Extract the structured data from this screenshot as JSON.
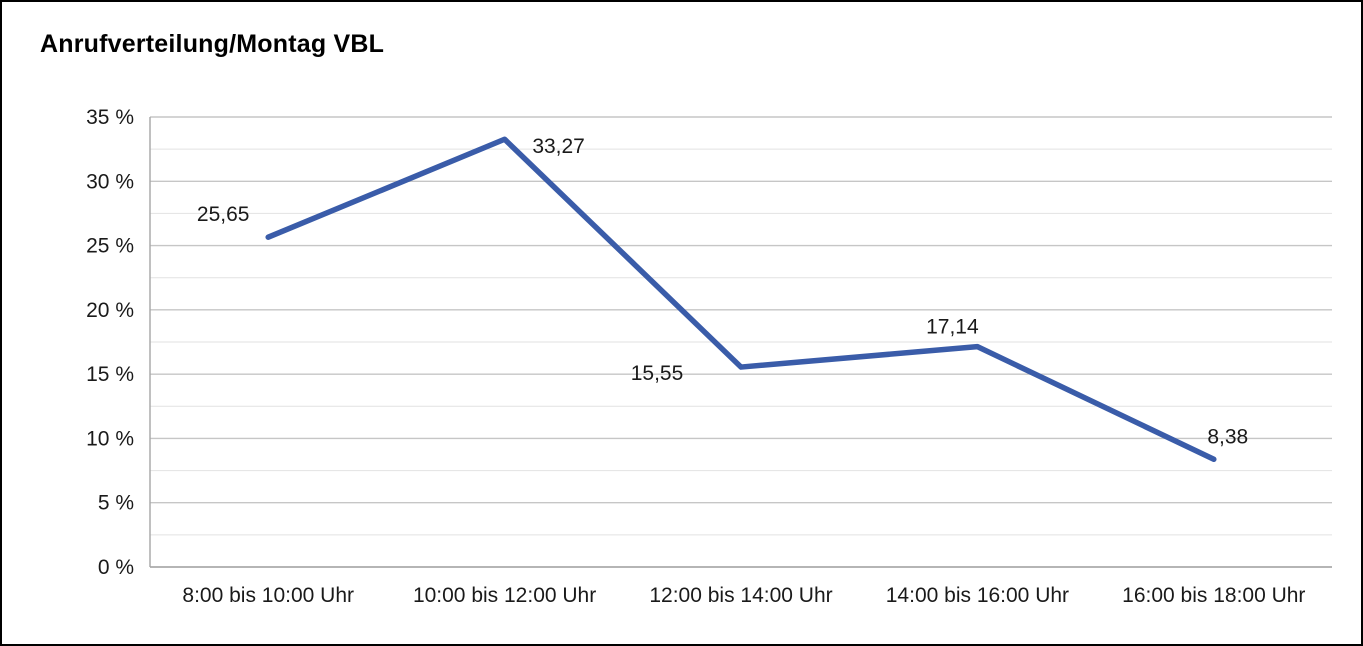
{
  "chart_data": {
    "type": "line",
    "title": "Anrufverteilung/Montag VBL",
    "categories": [
      "8:00 bis 10:00 Uhr",
      "10:00 bis 12:00 Uhr",
      "12:00 bis 14:00 Uhr",
      "14:00 bis 16:00 Uhr",
      "16:00 bis 18:00 Uhr"
    ],
    "values": [
      25.65,
      33.27,
      15.55,
      17.14,
      8.38
    ],
    "value_labels": [
      "25,65",
      "33,27",
      "15,55",
      "17,14",
      "8,38"
    ],
    "y_tick_labels": [
      "0 %",
      "5 %",
      "10 %",
      "15 %",
      "20 %",
      "25 %",
      "30 %",
      "35 %"
    ],
    "ylim": [
      0,
      35
    ],
    "y_tick_step": 5,
    "minor_grid_step": 2.5,
    "grid": true,
    "legend": "none",
    "xlabel": "",
    "ylabel": "",
    "line_color": "#3a5ca9",
    "major_grid_color": "#c6c6c6",
    "minor_grid_color": "#e2e2e2",
    "axis_line_color": "#a6a6a6",
    "label_color": "#1a1a1a"
  }
}
